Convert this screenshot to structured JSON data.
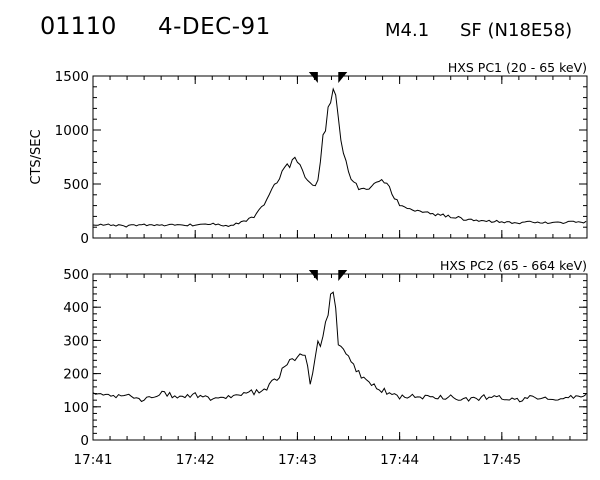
{
  "header": {
    "event_id": "01110",
    "date": "4-DEC-91",
    "flare_class": "M4.1",
    "flare_location": "SF (N18E58)"
  },
  "chart_data": [
    {
      "type": "line",
      "title": "HXS PC1 (20 - 65 keV)",
      "ylabel": "CTS/SEC",
      "xlabel": "",
      "ylim": [
        0,
        1500
      ],
      "yticks": [
        "0",
        "500",
        "1000",
        "1500"
      ],
      "xlim": [
        "17:41",
        "17:45:50"
      ],
      "xticks": [
        "17:41",
        "17:42",
        "17:43",
        "17:44",
        "17:45"
      ],
      "grid": false,
      "markers": [
        {
          "time": "17:43:12",
          "shape": "filled triangle",
          "direction": "down"
        },
        {
          "time": "17:43:24",
          "shape": "filled triangle",
          "direction": "down"
        }
      ],
      "series": [
        {
          "x": [
            "17:41:00",
            "17:41:10",
            "17:41:20",
            "17:41:30",
            "17:41:40",
            "17:41:50",
            "17:42:00",
            "17:42:10",
            "17:42:20",
            "17:42:30",
            "17:42:35",
            "17:42:40",
            "17:42:45",
            "17:42:50",
            "17:42:55",
            "17:43:00",
            "17:43:05",
            "17:43:10",
            "17:43:12",
            "17:43:15",
            "17:43:18",
            "17:43:20",
            "17:43:22",
            "17:43:24",
            "17:43:26",
            "17:43:28",
            "17:43:30",
            "17:43:35",
            "17:43:40",
            "17:43:45",
            "17:43:50",
            "17:43:55",
            "17:44:00",
            "17:44:10",
            "17:44:20",
            "17:44:30",
            "17:44:40",
            "17:44:50",
            "17:45:00",
            "17:45:10",
            "17:45:20",
            "17:45:30",
            "17:45:40",
            "17:45:50"
          ],
          "y": [
            130,
            120,
            110,
            120,
            115,
            125,
            120,
            130,
            110,
            160,
            200,
            300,
            450,
            600,
            700,
            700,
            550,
            450,
            560,
            950,
            1150,
            1350,
            1380,
            1050,
            850,
            700,
            600,
            480,
            430,
            480,
            520,
            440,
            300,
            250,
            220,
            200,
            170,
            160,
            150,
            140,
            150,
            140,
            145,
            150
          ]
        }
      ]
    },
    {
      "type": "line",
      "title": "HXS PC2 (65 - 664 keV)",
      "ylabel": "",
      "xlabel": "",
      "ylim": [
        0,
        500
      ],
      "yticks": [
        "0",
        "100",
        "200",
        "300",
        "400",
        "500"
      ],
      "xlim": [
        "17:41",
        "17:45:50"
      ],
      "xticks": [
        "17:41",
        "17:42",
        "17:43",
        "17:44",
        "17:45"
      ],
      "grid": false,
      "markers": [
        {
          "time": "17:43:12",
          "shape": "filled triangle",
          "direction": "down"
        },
        {
          "time": "17:43:24",
          "shape": "filled triangle",
          "direction": "down"
        }
      ],
      "series": [
        {
          "x": [
            "17:41:00",
            "17:41:10",
            "17:41:20",
            "17:41:30",
            "17:41:40",
            "17:41:50",
            "17:42:00",
            "17:42:10",
            "17:42:20",
            "17:42:30",
            "17:42:40",
            "17:42:45",
            "17:42:50",
            "17:42:55",
            "17:43:00",
            "17:43:05",
            "17:43:08",
            "17:43:10",
            "17:43:12",
            "17:43:14",
            "17:43:16",
            "17:43:18",
            "17:43:20",
            "17:43:22",
            "17:43:24",
            "17:43:26",
            "17:43:28",
            "17:43:32",
            "17:43:36",
            "17:43:40",
            "17:43:50",
            "17:44:00",
            "17:44:10",
            "17:44:20",
            "17:44:30",
            "17:44:40",
            "17:44:50",
            "17:45:00",
            "17:45:10",
            "17:45:20",
            "17:45:30",
            "17:45:40",
            "17:45:50"
          ],
          "y": [
            140,
            130,
            135,
            120,
            140,
            130,
            135,
            125,
            130,
            140,
            150,
            170,
            200,
            230,
            260,
            260,
            150,
            250,
            310,
            290,
            330,
            360,
            450,
            410,
            300,
            280,
            260,
            240,
            200,
            180,
            150,
            130,
            130,
            125,
            130,
            120,
            130,
            130,
            120,
            130,
            120,
            130,
            140
          ]
        }
      ]
    }
  ]
}
